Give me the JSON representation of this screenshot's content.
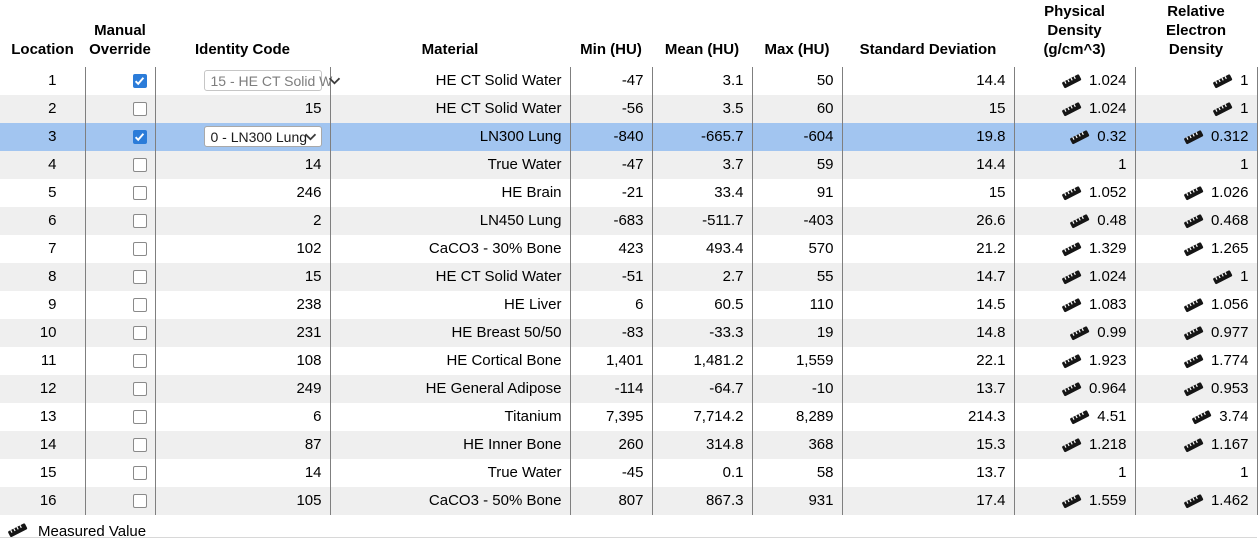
{
  "table": {
    "columns": [
      {
        "key": "location",
        "label": "Location"
      },
      {
        "key": "manual_override",
        "label": "Manual\nOverride"
      },
      {
        "key": "identity_code",
        "label": "Identity Code"
      },
      {
        "key": "material",
        "label": "Material"
      },
      {
        "key": "min_hu",
        "label": "Min (HU)"
      },
      {
        "key": "mean_hu",
        "label": "Mean (HU)"
      },
      {
        "key": "max_hu",
        "label": "Max (HU)"
      },
      {
        "key": "standard_deviation",
        "label": "Standard Deviation"
      },
      {
        "key": "physical_density",
        "label": "Physical\nDensity\n(g/cm^3)"
      },
      {
        "key": "relative_electron_density",
        "label": "Relative\nElectron Density"
      }
    ],
    "rows": [
      {
        "location": "1",
        "override_checked": true,
        "selected": false,
        "identity": {
          "type": "dropdown",
          "muted": true,
          "label": "15 - HE CT Solid W"
        },
        "material": "HE CT Solid Water",
        "min": "-47",
        "mean": "3.1",
        "max": "50",
        "std_dev": "14.4",
        "physical_density": {
          "measured": true,
          "value": "1.024"
        },
        "relative_electron_density": {
          "measured": true,
          "value": "1"
        }
      },
      {
        "location": "2",
        "override_checked": false,
        "selected": false,
        "identity": {
          "type": "text",
          "label": "15"
        },
        "material": "HE CT Solid Water",
        "min": "-56",
        "mean": "3.5",
        "max": "60",
        "std_dev": "15",
        "physical_density": {
          "measured": true,
          "value": "1.024"
        },
        "relative_electron_density": {
          "measured": true,
          "value": "1"
        }
      },
      {
        "location": "3",
        "override_checked": true,
        "selected": true,
        "identity": {
          "type": "dropdown",
          "muted": false,
          "label": "0 - LN300 Lung"
        },
        "material": "LN300 Lung",
        "min": "-840",
        "mean": "-665.7",
        "max": "-604",
        "std_dev": "19.8",
        "physical_density": {
          "measured": true,
          "value": "0.32"
        },
        "relative_electron_density": {
          "measured": true,
          "value": "0.312"
        }
      },
      {
        "location": "4",
        "override_checked": false,
        "selected": false,
        "identity": {
          "type": "text",
          "label": "14"
        },
        "material": "True Water",
        "min": "-47",
        "mean": "3.7",
        "max": "59",
        "std_dev": "14.4",
        "physical_density": {
          "measured": false,
          "value": "1"
        },
        "relative_electron_density": {
          "measured": false,
          "value": "1"
        }
      },
      {
        "location": "5",
        "override_checked": false,
        "selected": false,
        "identity": {
          "type": "text",
          "label": "246"
        },
        "material": "HE Brain",
        "min": "-21",
        "mean": "33.4",
        "max": "91",
        "std_dev": "15",
        "physical_density": {
          "measured": true,
          "value": "1.052"
        },
        "relative_electron_density": {
          "measured": true,
          "value": "1.026"
        }
      },
      {
        "location": "6",
        "override_checked": false,
        "selected": false,
        "identity": {
          "type": "text",
          "label": "2"
        },
        "material": "LN450 Lung",
        "min": "-683",
        "mean": "-511.7",
        "max": "-403",
        "std_dev": "26.6",
        "physical_density": {
          "measured": true,
          "value": "0.48"
        },
        "relative_electron_density": {
          "measured": true,
          "value": "0.468"
        }
      },
      {
        "location": "7",
        "override_checked": false,
        "selected": false,
        "identity": {
          "type": "text",
          "label": "102"
        },
        "material": "CaCO3 - 30% Bone",
        "min": "423",
        "mean": "493.4",
        "max": "570",
        "std_dev": "21.2",
        "physical_density": {
          "measured": true,
          "value": "1.329"
        },
        "relative_electron_density": {
          "measured": true,
          "value": "1.265"
        }
      },
      {
        "location": "8",
        "override_checked": false,
        "selected": false,
        "identity": {
          "type": "text",
          "label": "15"
        },
        "material": "HE CT Solid Water",
        "min": "-51",
        "mean": "2.7",
        "max": "55",
        "std_dev": "14.7",
        "physical_density": {
          "measured": true,
          "value": "1.024"
        },
        "relative_electron_density": {
          "measured": true,
          "value": "1"
        }
      },
      {
        "location": "9",
        "override_checked": false,
        "selected": false,
        "identity": {
          "type": "text",
          "label": "238"
        },
        "material": "HE Liver",
        "min": "6",
        "mean": "60.5",
        "max": "110",
        "std_dev": "14.5",
        "physical_density": {
          "measured": true,
          "value": "1.083"
        },
        "relative_electron_density": {
          "measured": true,
          "value": "1.056"
        }
      },
      {
        "location": "10",
        "override_checked": false,
        "selected": false,
        "identity": {
          "type": "text",
          "label": "231"
        },
        "material": "HE Breast 50/50",
        "min": "-83",
        "mean": "-33.3",
        "max": "19",
        "std_dev": "14.8",
        "physical_density": {
          "measured": true,
          "value": "0.99"
        },
        "relative_electron_density": {
          "measured": true,
          "value": "0.977"
        }
      },
      {
        "location": "11",
        "override_checked": false,
        "selected": false,
        "identity": {
          "type": "text",
          "label": "108"
        },
        "material": "HE Cortical Bone",
        "min": "1,401",
        "mean": "1,481.2",
        "max": "1,559",
        "std_dev": "22.1",
        "physical_density": {
          "measured": true,
          "value": "1.923"
        },
        "relative_electron_density": {
          "measured": true,
          "value": "1.774"
        }
      },
      {
        "location": "12",
        "override_checked": false,
        "selected": false,
        "identity": {
          "type": "text",
          "label": "249"
        },
        "material": "HE General Adipose",
        "min": "-114",
        "mean": "-64.7",
        "max": "-10",
        "std_dev": "13.7",
        "physical_density": {
          "measured": true,
          "value": "0.964"
        },
        "relative_electron_density": {
          "measured": true,
          "value": "0.953"
        }
      },
      {
        "location": "13",
        "override_checked": false,
        "selected": false,
        "identity": {
          "type": "text",
          "label": "6"
        },
        "material": "Titanium",
        "min": "7,395",
        "mean": "7,714.2",
        "max": "8,289",
        "std_dev": "214.3",
        "physical_density": {
          "measured": true,
          "value": "4.51"
        },
        "relative_electron_density": {
          "measured": true,
          "value": "3.74"
        }
      },
      {
        "location": "14",
        "override_checked": false,
        "selected": false,
        "identity": {
          "type": "text",
          "label": "87"
        },
        "material": "HE Inner Bone",
        "min": "260",
        "mean": "314.8",
        "max": "368",
        "std_dev": "15.3",
        "physical_density": {
          "measured": true,
          "value": "1.218"
        },
        "relative_electron_density": {
          "measured": true,
          "value": "1.167"
        }
      },
      {
        "location": "15",
        "override_checked": false,
        "selected": false,
        "identity": {
          "type": "text",
          "label": "14"
        },
        "material": "True Water",
        "min": "-45",
        "mean": "0.1",
        "max": "58",
        "std_dev": "13.7",
        "physical_density": {
          "measured": false,
          "value": "1"
        },
        "relative_electron_density": {
          "measured": false,
          "value": "1"
        }
      },
      {
        "location": "16",
        "override_checked": false,
        "selected": false,
        "identity": {
          "type": "text",
          "label": "105"
        },
        "material": "CaCO3 - 50% Bone",
        "min": "807",
        "mean": "867.3",
        "max": "931",
        "std_dev": "17.4",
        "physical_density": {
          "measured": true,
          "value": "1.559"
        },
        "relative_electron_density": {
          "measured": true,
          "value": "1.462"
        }
      }
    ]
  },
  "legend": {
    "measured_value_label": "Measured Value"
  },
  "colors": {
    "selected_row": "#a2c5f0",
    "alt_row": "#efefef",
    "grid_line": "#7f7f7f",
    "checkbox_checked": "#2b7cd9"
  }
}
